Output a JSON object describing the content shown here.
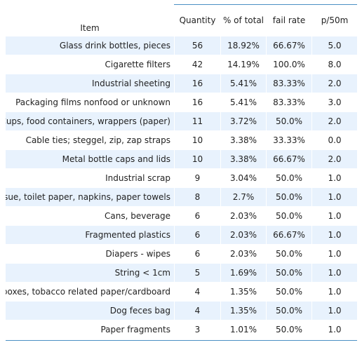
{
  "table": {
    "headers": {
      "item": "Item",
      "quantity": "Quantity",
      "percent": "% of total",
      "fail_rate": "fail rate",
      "p50m": "p/50m"
    },
    "rows": [
      {
        "item": "Glass drink bottles, pieces",
        "quantity": "56",
        "percent": "18.92%",
        "fail_rate": "66.67%",
        "p50m": "5.0"
      },
      {
        "item": "Cigarette filters",
        "quantity": "42",
        "percent": "14.19%",
        "fail_rate": "100.0%",
        "p50m": "8.0"
      },
      {
        "item": "Industrial sheeting",
        "quantity": "16",
        "percent": "5.41%",
        "fail_rate": "83.33%",
        "p50m": "2.0"
      },
      {
        "item": "Packaging films nonfood or unknown",
        "quantity": "16",
        "percent": "5.41%",
        "fail_rate": "83.33%",
        "p50m": "3.0"
      },
      {
        "item": "Cups, food containers, wrappers (paper)",
        "quantity": "11",
        "percent": "3.72%",
        "fail_rate": "50.0%",
        "p50m": "2.0"
      },
      {
        "item": "Cable ties; steggel, zip, zap straps",
        "quantity": "10",
        "percent": "3.38%",
        "fail_rate": "33.33%",
        "p50m": "0.0"
      },
      {
        "item": "Metal bottle caps and lids",
        "quantity": "10",
        "percent": "3.38%",
        "fail_rate": "66.67%",
        "p50m": "2.0"
      },
      {
        "item": "Industrial scrap",
        "quantity": "9",
        "percent": "3.04%",
        "fail_rate": "50.0%",
        "p50m": "1.0"
      },
      {
        "item": "Tissue, toilet paper, napkins, paper towels",
        "quantity": "8",
        "percent": "2.7%",
        "fail_rate": "50.0%",
        "p50m": "1.0"
      },
      {
        "item": "Cans, beverage",
        "quantity": "6",
        "percent": "2.03%",
        "fail_rate": "50.0%",
        "p50m": "1.0"
      },
      {
        "item": "Fragmented plastics",
        "quantity": "6",
        "percent": "2.03%",
        "fail_rate": "66.67%",
        "p50m": "1.0"
      },
      {
        "item": "Diapers - wipes",
        "quantity": "6",
        "percent": "2.03%",
        "fail_rate": "50.0%",
        "p50m": "1.0"
      },
      {
        "item": "String < 1cm",
        "quantity": "5",
        "percent": "1.69%",
        "fail_rate": "50.0%",
        "p50m": "1.0"
      },
      {
        "item": "Tobacco boxes, tobacco related paper/cardboard",
        "quantity": "4",
        "percent": "1.35%",
        "fail_rate": "50.0%",
        "p50m": "1.0"
      },
      {
        "item": "Dog feces bag",
        "quantity": "4",
        "percent": "1.35%",
        "fail_rate": "50.0%",
        "p50m": "1.0"
      },
      {
        "item": "Paper fragments",
        "quantity": "3",
        "percent": "1.01%",
        "fail_rate": "50.0%",
        "p50m": "1.0"
      }
    ]
  },
  "colors": {
    "row_shade": "#e8f2fd",
    "rule": "#4a90c4",
    "text": "#222222"
  }
}
